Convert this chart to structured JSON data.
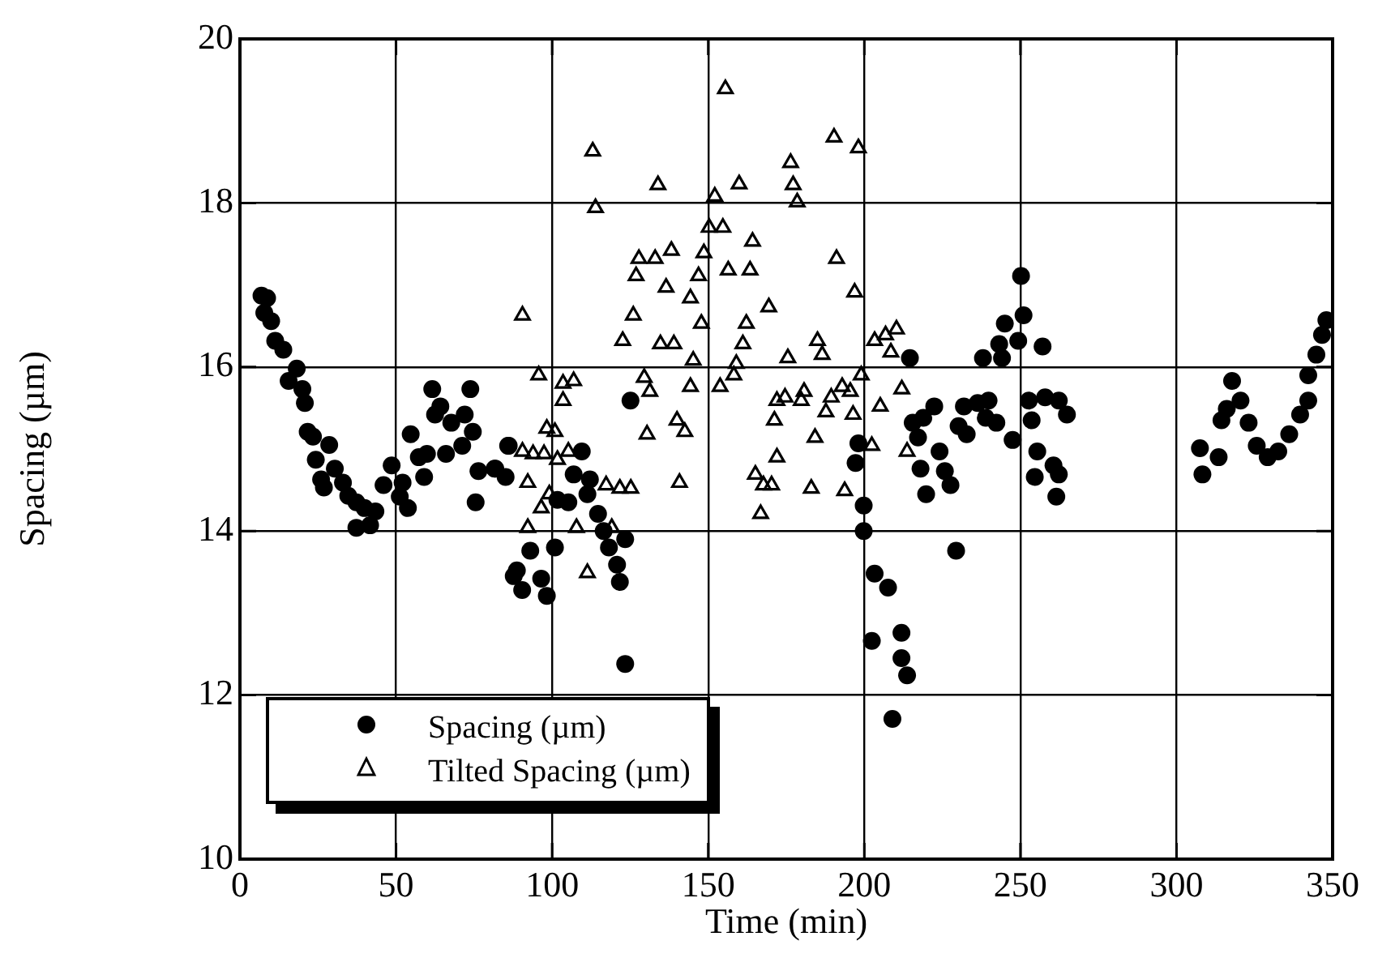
{
  "chart_data": {
    "type": "scatter",
    "xlabel": "Time (min)",
    "ylabel": "Spacing (µm)",
    "xlim": [
      0,
      350
    ],
    "xticks": [
      0,
      50,
      100,
      150,
      200,
      250,
      300,
      350
    ],
    "ylim": [
      10,
      20
    ],
    "yticks": [
      10,
      12,
      14,
      16,
      18,
      20
    ],
    "grid": true,
    "legend": "bottom left",
    "series": [
      {
        "name": "Spacing (µm)",
        "color": "#000000",
        "marker": "circle",
        "x": [
          6.9,
          8.7,
          7.8,
          10,
          11.3,
          13.9,
          18.2,
          15.6,
          20,
          20.8,
          21.7,
          23.4,
          28.6,
          24.3,
          30.4,
          26,
          33,
          26.9,
          34.7,
          37.3,
          39.9,
          37.3,
          41.7,
          43.4,
          46,
          48.6,
          51.2,
          53.8,
          52.1,
          54.7,
          57.3,
          59,
          59.9,
          61.6,
          62.5,
          64.2,
          66,
          67.7,
          71.2,
          73.8,
          72,
          74.6,
          75.5,
          76.4,
          81.6,
          85.1,
          85.9,
          87.7,
          81.8,
          86.1,
          88.7,
          90.4,
          93,
          96.5,
          98.3,
          100.9,
          101.7,
          105.2,
          106.9,
          109.5,
          112.1,
          111.3,
          114.7,
          116.5,
          118.2,
          120.8,
          121.7,
          123.4,
          123.4,
          125.1,
          250.2,
          251,
          245,
          257.1,
          249.3,
          243.2,
          238,
          244.1,
          214.6,
          198.1,
          197.2,
          199.8,
          199.8,
          203.3,
          207.6,
          202.4,
          211.9,
          211.9,
          213.7,
          209,
          222.4,
          218.9,
          215.5,
          217.2,
          224.1,
          218,
          225.8,
          219.8,
          227.6,
          229.4,
          231.9,
          230.2,
          232.8,
          236.3,
          239.8,
          238.9,
          242.3,
          247.5,
          252.7,
          253.6,
          257.9,
          262.3,
          264.9,
          255.4,
          254.6,
          260.6,
          262.3,
          261.5,
          307.5,
          308.3,
          313.5,
          314.4,
          316.1,
          317.8,
          320.5,
          323.1,
          325.7,
          329.2,
          332.6,
          336.1,
          339.6,
          342.2,
          342.2,
          344.8,
          346.6,
          348
        ],
        "values": [
          16.87,
          16.84,
          16.66,
          16.56,
          16.32,
          16.21,
          15.98,
          15.83,
          15.73,
          15.56,
          15.21,
          15.15,
          15.05,
          14.87,
          14.76,
          14.63,
          14.59,
          14.53,
          14.43,
          14.35,
          14.28,
          14.04,
          14.07,
          14.24,
          14.56,
          14.8,
          14.42,
          14.28,
          14.59,
          15.18,
          14.9,
          14.66,
          14.94,
          15.73,
          15.42,
          15.52,
          14.94,
          15.32,
          15.04,
          15.73,
          15.42,
          15.21,
          14.35,
          14.73,
          14.76,
          14.66,
          15.04,
          13.45,
          14.76,
          15.04,
          13.52,
          13.28,
          13.76,
          13.42,
          13.21,
          13.8,
          14.38,
          14.35,
          14.69,
          14.97,
          14.63,
          14.45,
          14.21,
          14,
          13.8,
          13.59,
          13.38,
          13.9,
          12.38,
          15.59,
          17.11,
          16.63,
          16.53,
          16.25,
          16.32,
          16.28,
          16.11,
          16.11,
          16.11,
          15.07,
          14.83,
          14.31,
          14,
          13.48,
          13.31,
          12.66,
          12.76,
          12.45,
          12.24,
          11.71,
          15.52,
          15.38,
          15.32,
          15.14,
          14.97,
          14.76,
          14.73,
          14.45,
          14.56,
          13.76,
          15.52,
          15.28,
          15.18,
          15.56,
          15.59,
          15.38,
          15.32,
          15.11,
          15.59,
          15.35,
          15.63,
          15.59,
          15.42,
          14.97,
          14.66,
          14.8,
          14.69,
          14.42,
          15.01,
          14.69,
          14.9,
          15.35,
          15.49,
          15.83,
          15.59,
          15.32,
          15.04,
          14.9,
          14.97,
          15.18,
          15.42,
          15.59,
          15.9,
          16.15,
          16.39,
          16.57
        ]
      },
      {
        "name": "Tilted Spacing (µm)",
        "color": "#000000",
        "marker": "triangle",
        "x": [
          155.5,
          113,
          133.9,
          159.9,
          113.9,
          152.1,
          150.3,
          154.7,
          164.2,
          127.8,
          133,
          138.2,
          148.6,
          126.9,
          146.9,
          156.4,
          163.4,
          136.5,
          144.3,
          169.4,
          90.5,
          126,
          147.8,
          162.2,
          122.6,
          134.7,
          139,
          161.1,
          145.2,
          159,
          95.7,
          103.5,
          106.9,
          129.5,
          144.3,
          153.8,
          158.2,
          172,
          103.5,
          131.3,
          98.3,
          100.9,
          140,
          171.2,
          130.4,
          142.5,
          90.5,
          93.9,
          97.4,
          101.7,
          105.2,
          172,
          92.2,
          117.3,
          121.7,
          125.2,
          140.8,
          165.1,
          167.7,
          96.5,
          99.1,
          92.2,
          107.8,
          119.1,
          166.8,
          111.3,
          190.3,
          198.1,
          176.4,
          177.2,
          178.5,
          191.1,
          196.9,
          185,
          175.5,
          186.5,
          203.3,
          206.8,
          210.3,
          208.5,
          199,
          212,
          174.6,
          180.7,
          179.8,
          189.4,
          192.9,
          195.5,
          187.7,
          196.4,
          205.1,
          184.2,
          202.4,
          213.7,
          170.3,
          183,
          193.7
        ],
        "values": [
          19.39,
          18.63,
          18.22,
          18.23,
          17.94,
          18.08,
          17.7,
          17.7,
          17.53,
          17.32,
          17.32,
          17.42,
          17.39,
          17.11,
          17.11,
          17.18,
          17.18,
          16.97,
          16.84,
          16.73,
          16.63,
          16.63,
          16.53,
          16.53,
          16.32,
          16.28,
          16.28,
          16.28,
          16.08,
          16.04,
          15.9,
          15.8,
          15.83,
          15.87,
          15.76,
          15.76,
          15.9,
          15.59,
          15.59,
          15.7,
          15.25,
          15.21,
          15.35,
          15.35,
          15.18,
          15.21,
          14.97,
          14.94,
          14.94,
          14.87,
          14.97,
          14.9,
          14.59,
          14.56,
          14.52,
          14.52,
          14.59,
          14.69,
          14.56,
          14.28,
          14.45,
          14.04,
          14.04,
          14.04,
          14.21,
          13.49,
          18.8,
          18.67,
          18.49,
          18.22,
          18.01,
          17.32,
          16.91,
          16.32,
          16.11,
          16.15,
          16.32,
          16.39,
          16.46,
          16.18,
          15.9,
          15.73,
          15.63,
          15.7,
          15.59,
          15.63,
          15.76,
          15.7,
          15.45,
          15.42,
          15.52,
          15.14,
          15.04,
          14.97,
          14.56,
          14.52,
          14.49
        ]
      }
    ]
  }
}
